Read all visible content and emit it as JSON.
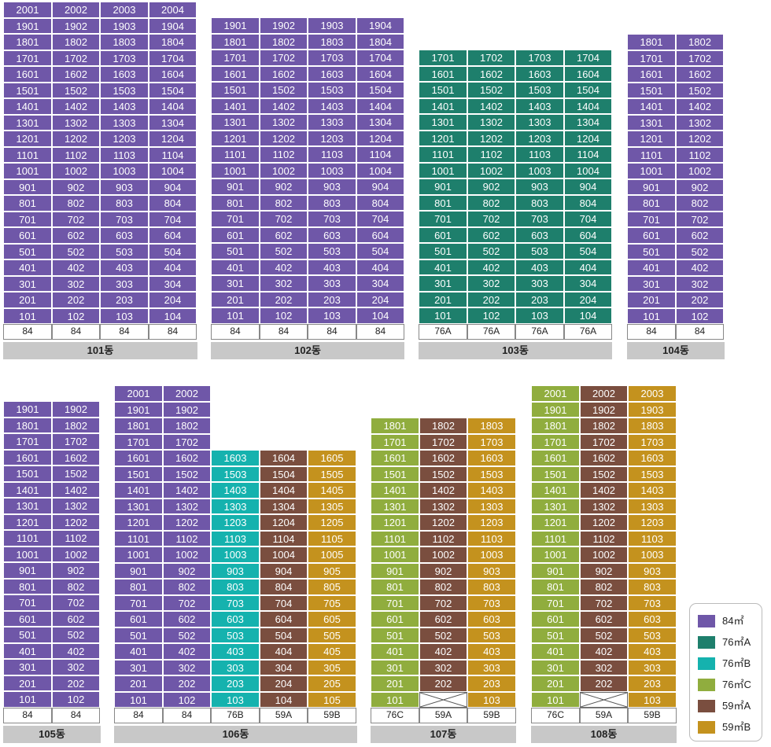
{
  "colors": {
    "84": "#6f57a8",
    "76A": "#1e7f6c",
    "76B": "#15b2ae",
    "76C": "#90ad3e",
    "59A": "#7a4e3f",
    "59B": "#c4921e"
  },
  "legend": [
    {
      "key": "84",
      "label": "84㎡"
    },
    {
      "key": "76A",
      "label": "76㎡A"
    },
    {
      "key": "76B",
      "label": "76㎡B"
    },
    {
      "key": "76C",
      "label": "76㎡C"
    },
    {
      "key": "59A",
      "label": "59㎡A"
    },
    {
      "key": "59B",
      "label": "59㎡B"
    }
  ],
  "buildings": [
    {
      "name": "101동",
      "columns": [
        {
          "type": "84",
          "label": "84",
          "floors": 20
        },
        {
          "type": "84",
          "label": "84",
          "floors": 20
        },
        {
          "type": "84",
          "label": "84",
          "floors": 20
        },
        {
          "type": "84",
          "label": "84",
          "floors": 20
        }
      ]
    },
    {
      "name": "102동",
      "columns": [
        {
          "type": "84",
          "label": "84",
          "floors": 19
        },
        {
          "type": "84",
          "label": "84",
          "floors": 19
        },
        {
          "type": "84",
          "label": "84",
          "floors": 19
        },
        {
          "type": "84",
          "label": "84",
          "floors": 19
        }
      ]
    },
    {
      "name": "103동",
      "columns": [
        {
          "type": "76A",
          "label": "76A",
          "floors": 17
        },
        {
          "type": "76A",
          "label": "76A",
          "floors": 17
        },
        {
          "type": "76A",
          "label": "76A",
          "floors": 17
        },
        {
          "type": "76A",
          "label": "76A",
          "floors": 17
        }
      ]
    },
    {
      "name": "104동",
      "columns": [
        {
          "type": "84",
          "label": "84",
          "floors": 18
        },
        {
          "type": "84",
          "label": "84",
          "floors": 18
        }
      ]
    },
    {
      "name": "105동",
      "columns": [
        {
          "type": "84",
          "label": "84",
          "floors": 19
        },
        {
          "type": "84",
          "label": "84",
          "floors": 19
        }
      ]
    },
    {
      "name": "106동",
      "columns": [
        {
          "type": "84",
          "label": "84",
          "floors": 20
        },
        {
          "type": "84",
          "label": "84",
          "floors": 20
        },
        {
          "type": "76B",
          "label": "76B",
          "floors": 16
        },
        {
          "type": "59A",
          "label": "59A",
          "floors": 16
        },
        {
          "type": "59B",
          "label": "59B",
          "floors": 16
        }
      ]
    },
    {
      "name": "107동",
      "columns": [
        {
          "type": "76C",
          "label": "76C",
          "floors": 18
        },
        {
          "type": "59A",
          "label": "59A",
          "floors": 18,
          "empty": [
            1
          ]
        },
        {
          "type": "59B",
          "label": "59B",
          "floors": 18
        }
      ]
    },
    {
      "name": "108동",
      "columns": [
        {
          "type": "76C",
          "label": "76C",
          "floors": 20
        },
        {
          "type": "59A",
          "label": "59A",
          "floors": 20,
          "empty": [
            1
          ]
        },
        {
          "type": "59B",
          "label": "59B",
          "floors": 20
        }
      ]
    }
  ]
}
